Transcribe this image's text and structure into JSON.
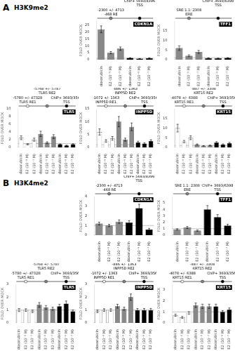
{
  "chart_data": [
    {
      "type": "bar",
      "title": "CDKN1A",
      "subtitle": "H3K9me2",
      "ylabel": "FOLD OVER MOCK",
      "categories": [
        "doxorubicin",
        "E2 (10⁻⁹ M)",
        "E2 (10⁻⁷ M)",
        "doxorubicin",
        "E2 (10⁻⁹ M)",
        "E2 (10⁻⁷ M)"
      ],
      "values": [
        22,
        5,
        8,
        1.2,
        0.7,
        1.1
      ],
      "errors": [
        2.5,
        0.8,
        1.2,
        0.2,
        0.1,
        0.2
      ],
      "colors": [
        "#888888",
        "#888888",
        "#888888",
        "black",
        "black",
        "black"
      ],
      "ylim": [
        0,
        28
      ],
      "yticks": [
        0,
        5,
        10,
        15,
        20,
        25
      ],
      "grid": false,
      "annotations": [
        {
          "text": "A"
        },
        {
          "y": 1.0
        },
        {
          "text": "-468 RE",
          "subtitle": "-2300 +/- 4713",
          "color": "#888888"
        },
        {
          "text": "TSS",
          "subtitle": "ChIP+ 5693/8396",
          "color": "black"
        }
      ]
    },
    {
      "type": "bar",
      "title": "TFF1",
      "ylabel": "FOLD OVER MOCK",
      "categories": [
        "doxorubicin",
        "E2 (10⁻⁹ M)",
        "E2 (10⁻⁷ M)",
        "doxorubicin",
        "E2 (10⁻⁹ M)",
        "E2 (10⁻⁷ M)"
      ],
      "values": [
        6,
        2,
        4,
        0.8,
        0.7,
        0.9
      ],
      "errors": [
        1.2,
        0.5,
        0.8,
        0.15,
        0.1,
        0.12
      ],
      "colors": [
        "#888888",
        "#888888",
        "#888888",
        "black",
        "black",
        "black"
      ],
      "ylim": [
        0,
        20
      ],
      "yticks": [
        0,
        5,
        10,
        15
      ],
      "grid": false,
      "annotations": [
        {
          "y": 1.0
        },
        {
          "text": "ERE",
          "subtitle": "SRE 1.1: 2308",
          "color": "#888888"
        },
        {
          "text": "TSS",
          "subtitle": "ChIP+ 3693/6398",
          "color": "black"
        }
      ]
    },
    {
      "type": "bar",
      "title": "TLR5",
      "ylabel": "FOLD OVER MOCK",
      "categories": [
        "doxorubicin",
        "E2 (10⁻⁹ M)",
        "E2 (10⁻⁷ M)",
        "doxorubicin",
        "E2 (10⁻⁹ M)",
        "E2 (10⁻⁷ M)",
        "doxorubicin",
        "E2 (10⁻⁹ M)",
        "E2 (10⁻⁷ M)"
      ],
      "values": [
        2.5,
        0.8,
        2.0,
        3.5,
        1.2,
        2.8,
        0.8,
        0.5,
        0.8
      ],
      "errors": [
        0.5,
        0.15,
        0.4,
        0.7,
        0.25,
        0.5,
        0.1,
        0.08,
        0.12
      ],
      "colors": [
        "white",
        "white",
        "white",
        "#888888",
        "#888888",
        "#888888",
        "black",
        "black",
        "black"
      ],
      "ylim": [
        0,
        10
      ],
      "yticks": [
        0,
        2,
        4,
        6,
        8,
        10
      ],
      "grid": false,
      "annotations": [
        {
          "y": 1.0
        },
        {
          "text": "TLR5 RE1",
          "subtitle": "-5780 +/- 47328",
          "color": "white"
        },
        {
          "text": "TLR5 RE2",
          "subtitle": "-5768 +/- 5787",
          "color": "#888888"
        },
        {
          "text": "TSS",
          "subtitle": "ChIP+ 3693/3566",
          "color": "black"
        }
      ]
    },
    {
      "type": "bar",
      "title": "INPP5D",
      "ylabel": "FOLD OVER MOCK",
      "categories": [
        "doxorubicin",
        "E2 (10⁻⁹ M)",
        "E2 (10⁻⁷ M)",
        "doxorubicin",
        "E2 (10⁻⁹ M)",
        "E2 (10⁻⁷ M)",
        "doxorubicin",
        "E2 (10⁻⁹ M)",
        "E2 (10⁻⁷ M)"
      ],
      "values": [
        6,
        2.5,
        3.5,
        10,
        3,
        8,
        2.0,
        1.5,
        2.5
      ],
      "errors": [
        1.2,
        0.5,
        0.7,
        2.0,
        0.6,
        1.5,
        0.4,
        0.3,
        0.5
      ],
      "colors": [
        "white",
        "white",
        "white",
        "#888888",
        "#888888",
        "#888888",
        "black",
        "black",
        "black"
      ],
      "ylim": [
        0,
        15
      ],
      "yticks": [
        0,
        5,
        10,
        15
      ],
      "grid": false,
      "annotations": [
        {
          "y": 1.0
        },
        {
          "text": "INPP5D RE1",
          "subtitle": "-1072 +/- 1363",
          "color": "white"
        },
        {
          "text": "INPP5D RE2",
          "subtitle": "-886 +/- 1363",
          "color": "#888888"
        },
        {
          "text": "TSS",
          "subtitle": "ChIP+ 3693/3566",
          "color": "black"
        }
      ]
    },
    {
      "type": "bar",
      "title": "KRT15",
      "ylabel": "FOLD OVER MOCK",
      "categories": [
        "doxorubicin",
        "E2 (10⁻⁹ M)",
        "E2 (10⁻⁷ M)",
        "doxorubicin",
        "E2 (10⁻⁹ M)",
        "E2 (10⁻⁷ M)",
        "doxorubicin",
        "E2 (10⁻⁹ M)",
        "E2 (10⁻⁷ M)"
      ],
      "values": [
        10,
        3,
        5,
        1.5,
        0.8,
        1.0,
        2.5,
        1.5,
        2.2
      ],
      "errors": [
        2.0,
        0.6,
        1.0,
        0.3,
        0.12,
        0.2,
        0.5,
        0.3,
        0.4
      ],
      "colors": [
        "white",
        "white",
        "white",
        "#888888",
        "#888888",
        "#888888",
        "black",
        "black",
        "black"
      ],
      "ylim": [
        0,
        20
      ],
      "yticks": [
        0,
        5,
        10,
        15
      ],
      "grid": false,
      "annotations": [
        {
          "y": 1.0
        },
        {
          "text": "KRT15 RE1",
          "subtitle": "-4078 +/- 6388",
          "color": "white"
        },
        {
          "text": "KRT15 RE2",
          "subtitle": "-887 +/- 3308",
          "color": "#888888"
        },
        {
          "text": "TSS",
          "subtitle": "ChIP+ 3693/3566",
          "color": "black"
        }
      ]
    },
    {
      "type": "bar",
      "title": "CDKN1A",
      "subtitle": "H3K4me2",
      "ylabel": "FOLD OVER MOCK",
      "categories": [
        "doxorubicin",
        "E2 (10⁻⁹ M)",
        "E2 (10⁻⁷ M)",
        "doxorubicin",
        "E2 (10⁻⁹ M)",
        "E2 (10⁻⁷ M)"
      ],
      "values": [
        1.2,
        1.0,
        1.4,
        1.3,
        2.8,
        0.6
      ],
      "errors": [
        0.15,
        0.12,
        0.18,
        0.2,
        0.4,
        0.1
      ],
      "colors": [
        "#888888",
        "#888888",
        "#888888",
        "black",
        "black",
        "black"
      ],
      "ylim": [
        0,
        4
      ],
      "yticks": [
        0,
        1,
        2,
        3,
        4
      ],
      "grid": false,
      "annotations": [
        {
          "text": "B"
        },
        {
          "y": 1.0
        },
        {
          "text": "-468 RE",
          "subtitle": "-2300 +/- 4713",
          "color": "#888888"
        },
        {
          "text": "TSS",
          "subtitle": "ChIP+ 5693/8396",
          "color": "black"
        }
      ]
    },
    {
      "type": "bar",
      "title": "TFF1",
      "ylabel": "FOLD OVER MOCK",
      "categories": [
        "doxorubicin",
        "E2 (10⁻⁹ M)",
        "E2 (10⁻⁷ M)",
        "doxorubicin",
        "E2 (10⁻⁹ M)",
        "E2 (10⁻⁷ M)"
      ],
      "values": [
        0.9,
        1.2,
        0.7,
        4.0,
        2.8,
        1.5
      ],
      "errors": [
        0.1,
        0.15,
        0.1,
        0.6,
        0.4,
        0.2
      ],
      "colors": [
        "#888888",
        "#888888",
        "#888888",
        "black",
        "black",
        "black"
      ],
      "ylim": [
        0,
        6
      ],
      "yticks": [
        0,
        1,
        2,
        3,
        4,
        5
      ],
      "grid": false,
      "annotations": [
        {
          "y": 1.0
        },
        {
          "text": "ERE",
          "subtitle": "SRE 1.1: 2308",
          "color": "#888888"
        },
        {
          "text": "TSS",
          "subtitle": "ChIP+ 3693/6398",
          "color": "black"
        }
      ]
    },
    {
      "type": "bar",
      "title": "TLR5",
      "ylabel": "FOLD OVER MOCK",
      "categories": [
        "doxorubicin",
        "E2 (10⁻⁹ M)",
        "E2 (10⁻⁷ M)",
        "doxorubicin",
        "E2 (10⁻⁹ M)",
        "E2 (10⁻⁷ M)",
        "doxorubicin",
        "E2 (10⁻⁹ M)",
        "E2 (10⁻⁷ M)"
      ],
      "values": [
        1.0,
        1.0,
        0.9,
        1.4,
        1.2,
        1.1,
        1.3,
        1.5,
        0.9
      ],
      "errors": [
        0.12,
        0.1,
        0.1,
        0.18,
        0.15,
        0.12,
        0.15,
        0.2,
        0.1
      ],
      "colors": [
        "white",
        "white",
        "white",
        "#888888",
        "#888888",
        "#888888",
        "black",
        "black",
        "black"
      ],
      "ylim": [
        0,
        3
      ],
      "yticks": [
        0,
        1,
        2,
        3
      ],
      "grid": false,
      "annotations": [
        {
          "y": 1.0
        },
        {
          "text": "TLR5 RE1",
          "subtitle": "-5780 +/- 47328",
          "color": "white"
        },
        {
          "text": "TLR5 RE2",
          "subtitle": "-5768 +/- 5787",
          "color": "#888888"
        },
        {
          "text": "TSS",
          "subtitle": "ChIP+ 3693/3566",
          "color": "black"
        }
      ]
    },
    {
      "type": "bar",
      "title": "INPP5D",
      "ylabel": "FOLD OVER MOCK",
      "categories": [
        "doxorubicin",
        "E2 (10⁻⁹ M)",
        "E2 (10⁻⁷ M)",
        "doxorubicin",
        "E2 (10⁻⁹ M)",
        "E2 (10⁻⁷ M)",
        "doxorubicin",
        "E2 (10⁻⁹ M)",
        "E2 (10⁻⁷ M)"
      ],
      "values": [
        0.9,
        1.0,
        1.0,
        1.3,
        1.1,
        2.0,
        1.0,
        1.0,
        1.0
      ],
      "errors": [
        0.1,
        0.1,
        0.1,
        0.15,
        0.12,
        0.25,
        0.12,
        0.12,
        0.12
      ],
      "colors": [
        "white",
        "white",
        "white",
        "#888888",
        "#888888",
        "#888888",
        "black",
        "black",
        "black"
      ],
      "ylim": [
        0,
        3
      ],
      "yticks": [
        0,
        1,
        2,
        3
      ],
      "grid": false,
      "annotations": [
        {
          "y": 1.0
        },
        {
          "text": "INPP5D RE1",
          "subtitle": "-1072 +/- 1363",
          "color": "white"
        },
        {
          "text": "INPP5D RE2",
          "subtitle": "-886 +/- 1363",
          "color": "#888888"
        },
        {
          "text": "TSS",
          "subtitle": "ChIP+ 3693/3566",
          "color": "black"
        }
      ]
    },
    {
      "type": "bar",
      "title": "KRT15",
      "ylabel": "FOLD OVER MOCK",
      "categories": [
        "doxorubicin",
        "E2 (10⁻⁹ M)",
        "E2 (10⁻⁷ M)",
        "doxorubicin",
        "E2 (10⁻⁹ M)",
        "E2 (10⁻⁷ M)",
        "doxorubicin",
        "E2 (10⁻⁹ M)",
        "E2 (10⁻⁷ M)"
      ],
      "values": [
        0.7,
        0.5,
        0.9,
        1.6,
        1.5,
        1.5,
        1.5,
        1.0,
        1.2
      ],
      "errors": [
        0.1,
        0.08,
        0.12,
        0.2,
        0.2,
        0.2,
        0.2,
        0.12,
        0.15
      ],
      "colors": [
        "white",
        "white",
        "white",
        "#888888",
        "#888888",
        "#888888",
        "black",
        "black",
        "black"
      ],
      "ylim": [
        0,
        3.5
      ],
      "yticks": [
        0,
        1,
        2,
        3
      ],
      "grid": false,
      "annotations": [
        {
          "y": 1.0
        },
        {
          "text": "KRT15 RE1",
          "subtitle": "-4078 +/- 6388",
          "color": "white"
        },
        {
          "text": "KRT15 RE2",
          "subtitle": "-887 +/- 3308",
          "color": "#888888"
        },
        {
          "text": "TSS",
          "subtitle": "ChIP+ 3693/3566",
          "color": "black"
        }
      ]
    }
  ]
}
